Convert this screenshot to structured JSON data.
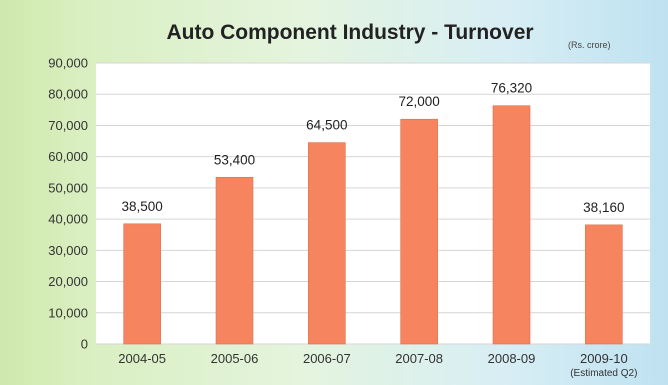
{
  "chart_data": {
    "type": "bar",
    "title": "Auto Component Industry - Turnover",
    "unit_note": "(Rs. crore)",
    "categories": [
      "2004-05",
      "2005-06",
      "2006-07",
      "2007-08",
      "2008-09",
      "2009-10"
    ],
    "category_notes": [
      "",
      "",
      "",
      "",
      "",
      "(Estimated Q2)"
    ],
    "values": [
      38500,
      53400,
      64500,
      72000,
      76320,
      38160
    ],
    "value_labels": [
      "38,500",
      "53,400",
      "64,500",
      "72,000",
      "76,320",
      "38,160"
    ],
    "ylim": [
      0,
      90000
    ],
    "yticks": [
      0,
      10000,
      20000,
      30000,
      40000,
      50000,
      60000,
      70000,
      80000,
      90000
    ],
    "ytick_labels": [
      "0",
      "10,000",
      "20,000",
      "30,000",
      "40,000",
      "50,000",
      "60,000",
      "70,000",
      "80,000",
      "90,000"
    ],
    "grid": true,
    "legend": "none",
    "colors": {
      "bar": "#f5845f",
      "bar_edge": "#e0704c",
      "grid": "#d6d6d6",
      "plot_bg": "#ffffff"
    }
  }
}
